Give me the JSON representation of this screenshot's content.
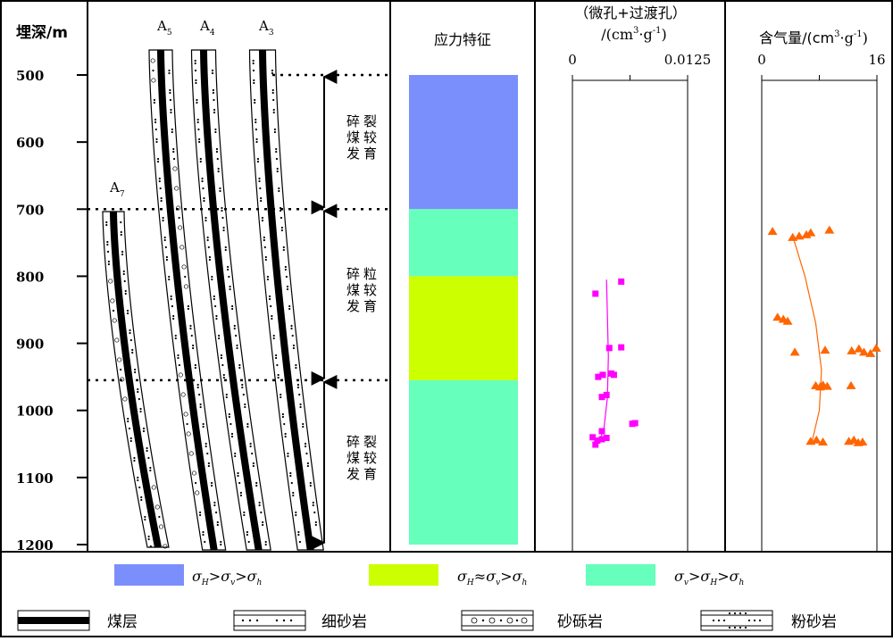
{
  "chart_data": [
    {
      "type": "table",
      "panel": "depth-column",
      "ylabel": "埋深/m",
      "ylim": [
        500,
        1200
      ],
      "yticks": [
        500,
        600,
        700,
        800,
        900,
        1000,
        1100,
        1200
      ],
      "coal_columns": [
        {
          "label": "A",
          "sub": "7",
          "top_depth": 700
        },
        {
          "label": "A",
          "sub": "5",
          "top_depth": 465
        },
        {
          "label": "A",
          "sub": "4",
          "top_depth": 465
        },
        {
          "label": "A",
          "sub": "3",
          "top_depth": 465
        }
      ],
      "zone_boundaries": [
        500,
        700,
        955
      ],
      "zones": [
        {
          "top": 500,
          "bottom": 700,
          "text": "碎裂煤较发育"
        },
        {
          "top": 700,
          "bottom": 955,
          "text": "碎粒煤较发育"
        },
        {
          "top": 955,
          "bottom": 1200,
          "text": "碎裂煤较发育"
        }
      ]
    },
    {
      "type": "bar",
      "panel": "stress",
      "title": "应力特征",
      "bands": [
        {
          "top": 500,
          "bottom": 700,
          "class": "h"
        },
        {
          "top": 700,
          "bottom": 800,
          "class": "v"
        },
        {
          "top": 800,
          "bottom": 955,
          "class": "a"
        },
        {
          "top": 955,
          "bottom": 1200,
          "class": "v"
        }
      ]
    },
    {
      "type": "scatter",
      "panel": "pore",
      "title_line1": "（微孔+过渡孔）",
      "title_line2": "/(cm",
      "title_sup": "3",
      "title_line2_tail": "·g",
      "title_sup2": "-1",
      "title_line2_end": ")",
      "xlim": [
        0,
        0.0125
      ],
      "xtick_labels": [
        "0",
        "0.0125"
      ],
      "marker": "square",
      "color": "#ff00ff",
      "points": [
        {
          "x": 0.0053,
          "y": 808
        },
        {
          "x": 0.0025,
          "y": 826
        },
        {
          "x": 0.004,
          "y": 907
        },
        {
          "x": 0.0053,
          "y": 906
        },
        {
          "x": 0.0028,
          "y": 950
        },
        {
          "x": 0.0033,
          "y": 947
        },
        {
          "x": 0.0042,
          "y": 945
        },
        {
          "x": 0.0045,
          "y": 947
        },
        {
          "x": 0.0032,
          "y": 980
        },
        {
          "x": 0.0037,
          "y": 977
        },
        {
          "x": 0.0065,
          "y": 1020
        },
        {
          "x": 0.0068,
          "y": 1019
        },
        {
          "x": 0.0032,
          "y": 1031
        },
        {
          "x": 0.0022,
          "y": 1040
        },
        {
          "x": 0.0027,
          "y": 1045
        },
        {
          "x": 0.0032,
          "y": 1043
        },
        {
          "x": 0.0037,
          "y": 1041
        },
        {
          "x": 0.0025,
          "y": 1051
        }
      ],
      "trend": [
        {
          "x": 0.0037,
          "y": 805
        },
        {
          "x": 0.0038,
          "y": 860
        },
        {
          "x": 0.0039,
          "y": 920
        },
        {
          "x": 0.0038,
          "y": 980
        },
        {
          "x": 0.0034,
          "y": 1030
        },
        {
          "x": 0.0028,
          "y": 1048
        }
      ]
    },
    {
      "type": "scatter",
      "panel": "gas",
      "title": "含气量/(cm",
      "title_sup": "3",
      "title_mid": "·g",
      "title_sup2": "-1",
      "title_end": ")",
      "xlim": [
        0,
        16
      ],
      "xtick_labels": [
        "0",
        "16"
      ],
      "marker": "triangle",
      "color": "#ff6600",
      "points": [
        {
          "x": 1.5,
          "y": 733
        },
        {
          "x": 4.3,
          "y": 742
        },
        {
          "x": 6.2,
          "y": 738
        },
        {
          "x": 6.8,
          "y": 735
        },
        {
          "x": 9.4,
          "y": 731
        },
        {
          "x": 5.2,
          "y": 740
        },
        {
          "x": 2.2,
          "y": 861
        },
        {
          "x": 3.0,
          "y": 864
        },
        {
          "x": 3.6,
          "y": 867
        },
        {
          "x": 4.6,
          "y": 913
        },
        {
          "x": 8.8,
          "y": 910
        },
        {
          "x": 12.5,
          "y": 911
        },
        {
          "x": 13.5,
          "y": 908
        },
        {
          "x": 14.2,
          "y": 913
        },
        {
          "x": 15.1,
          "y": 915
        },
        {
          "x": 15.9,
          "y": 907
        },
        {
          "x": 7.5,
          "y": 963
        },
        {
          "x": 8.1,
          "y": 965
        },
        {
          "x": 8.5,
          "y": 962
        },
        {
          "x": 9.1,
          "y": 964
        },
        {
          "x": 12.4,
          "y": 963
        },
        {
          "x": 6.8,
          "y": 1046
        },
        {
          "x": 7.6,
          "y": 1044
        },
        {
          "x": 8.5,
          "y": 1047
        },
        {
          "x": 12.1,
          "y": 1046
        },
        {
          "x": 12.8,
          "y": 1044
        },
        {
          "x": 13.4,
          "y": 1048
        },
        {
          "x": 14.0,
          "y": 1047
        }
      ],
      "trend": [
        {
          "x": 4.3,
          "y": 740
        },
        {
          "x": 6.0,
          "y": 800
        },
        {
          "x": 7.5,
          "y": 870
        },
        {
          "x": 8.3,
          "y": 940
        },
        {
          "x": 8.0,
          "y": 1000
        },
        {
          "x": 7.0,
          "y": 1046
        }
      ]
    }
  ],
  "legend": {
    "stress": [
      {
        "id": "h",
        "color": "#7b8ffc",
        "sig1": "H",
        "sig2": "v",
        "sig3": "h",
        "rel1": ">",
        "rel2": ">"
      },
      {
        "id": "a",
        "color": "#ccff00",
        "sig1": "H",
        "sig2": "v",
        "sig3": "h",
        "rel1": "≈",
        "rel2": ">"
      },
      {
        "id": "v",
        "color": "#66ffbb",
        "sig1": "v",
        "sig2": "H",
        "sig3": "h",
        "rel1": ">",
        "rel2": ">"
      }
    ],
    "lithology": [
      {
        "id": "coal",
        "text": "煤层"
      },
      {
        "id": "fine-sand",
        "text": "细砂岩"
      },
      {
        "id": "gravel",
        "text": "砂砾岩"
      },
      {
        "id": "silt",
        "text": "粉砂岩"
      }
    ]
  }
}
